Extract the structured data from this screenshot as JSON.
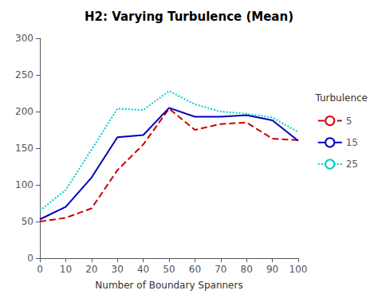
{
  "chart_data": {
    "type": "line",
    "title": "H2: Varying Turbulence (Mean)",
    "xlabel": "Number of Boundary Spanners",
    "x": [
      0,
      10,
      20,
      30,
      40,
      50,
      60,
      70,
      80,
      90,
      100
    ],
    "series": [
      {
        "name": "5",
        "color": "#cc0000",
        "line_style": "dashed",
        "values": [
          50,
          55,
          68,
          120,
          155,
          204,
          175,
          183,
          185,
          163,
          161
        ]
      },
      {
        "name": "15",
        "color": "#0000bb",
        "line_style": "solid",
        "values": [
          53,
          70,
          110,
          165,
          168,
          205,
          193,
          193,
          195,
          188,
          160
        ]
      },
      {
        "name": "25",
        "color": "#00cccc",
        "line_style": "dotted",
        "values": [
          65,
          93,
          148,
          204,
          202,
          228,
          210,
          200,
          197,
          192,
          172
        ]
      }
    ],
    "xlim": [
      0,
      100
    ],
    "ylim": [
      0,
      300
    ],
    "xticks": [
      0,
      10,
      20,
      30,
      40,
      50,
      60,
      70,
      80,
      90,
      100
    ],
    "yticks": [
      0,
      50,
      100,
      150,
      200,
      250,
      300
    ],
    "grid": false,
    "legend": "right",
    "legend_title": "Turbulence"
  }
}
